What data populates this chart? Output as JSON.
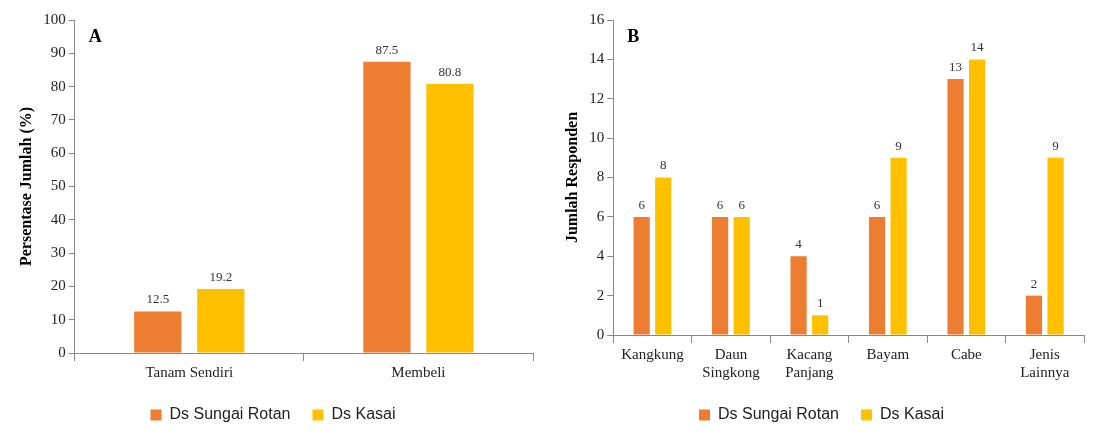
{
  "chart_data": [
    {
      "type": "bar",
      "annotations": [
        "A"
      ],
      "ylabel": "Persentase Jumlah (%)",
      "categories": [
        "Tanam Sendiri",
        "Membeli"
      ],
      "series": [
        {
          "name": "Ds Sungai Rotan",
          "color": "#ed7d31",
          "values": [
            12.5,
            87.5
          ]
        },
        {
          "name": "Ds Kasai",
          "color": "#ffc000",
          "values": [
            19.2,
            80.8
          ]
        }
      ],
      "ylim": [
        0,
        100
      ],
      "yticks": [
        0,
        10,
        20,
        30,
        40,
        50,
        60,
        70,
        80,
        90,
        100
      ],
      "grid": false,
      "legend": "bottom",
      "data_labels": true
    },
    {
      "type": "bar",
      "annotations": [
        "B"
      ],
      "ylabel": "Jumlah Responden",
      "categories": [
        "Kangkung",
        "Daun Singkong",
        "Kacang Panjang",
        "Bayam",
        "Cabe",
        "Jenis Lainnya"
      ],
      "series": [
        {
          "name": "Ds Sungai Rotan",
          "color": "#ed7d31",
          "values": [
            6,
            6,
            4,
            6,
            13,
            2
          ]
        },
        {
          "name": "Ds Kasai",
          "color": "#ffc000",
          "values": [
            8,
            6,
            1,
            9,
            14,
            9
          ]
        }
      ],
      "ylim": [
        0,
        16
      ],
      "yticks": [
        0,
        2,
        4,
        6,
        8,
        10,
        12,
        14,
        16
      ],
      "grid": false,
      "legend": "bottom",
      "data_labels": true
    }
  ]
}
